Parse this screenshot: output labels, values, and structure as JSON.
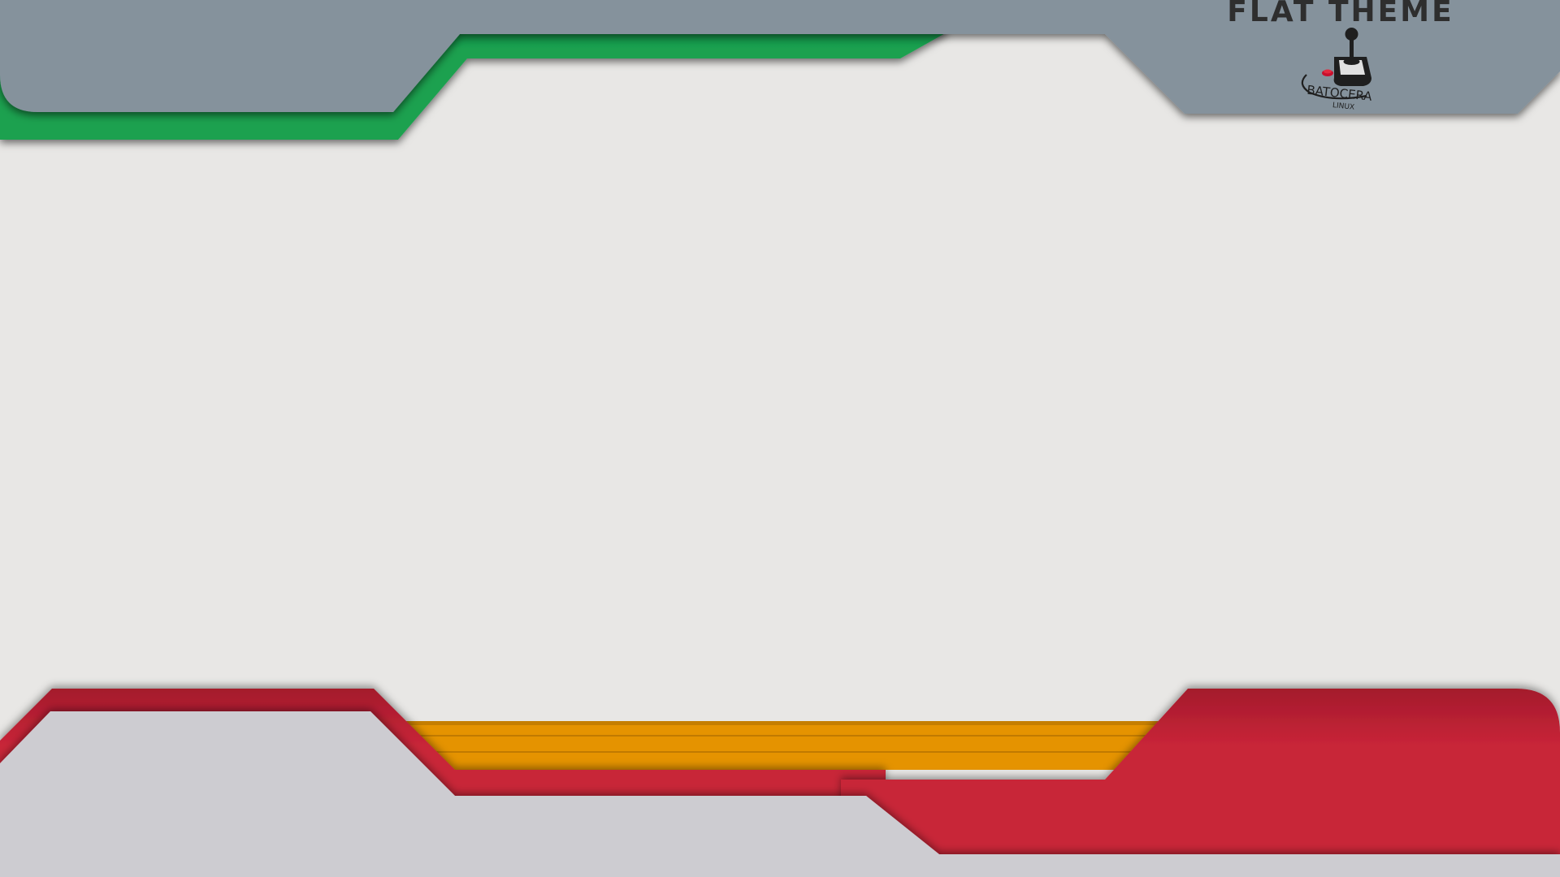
{
  "header": {
    "theme_title": "FLAT THEME",
    "logo": {
      "icon": "joystick-icon",
      "name": "BATOCERA",
      "subtitle": "LINUX"
    }
  },
  "colors": {
    "background": "#e8e7e5",
    "header_gray": "#85929c",
    "accent_green": "#1aa150",
    "accent_red": "#c82538",
    "accent_orange": "#e59300",
    "footer_gray": "#cdccd1"
  }
}
